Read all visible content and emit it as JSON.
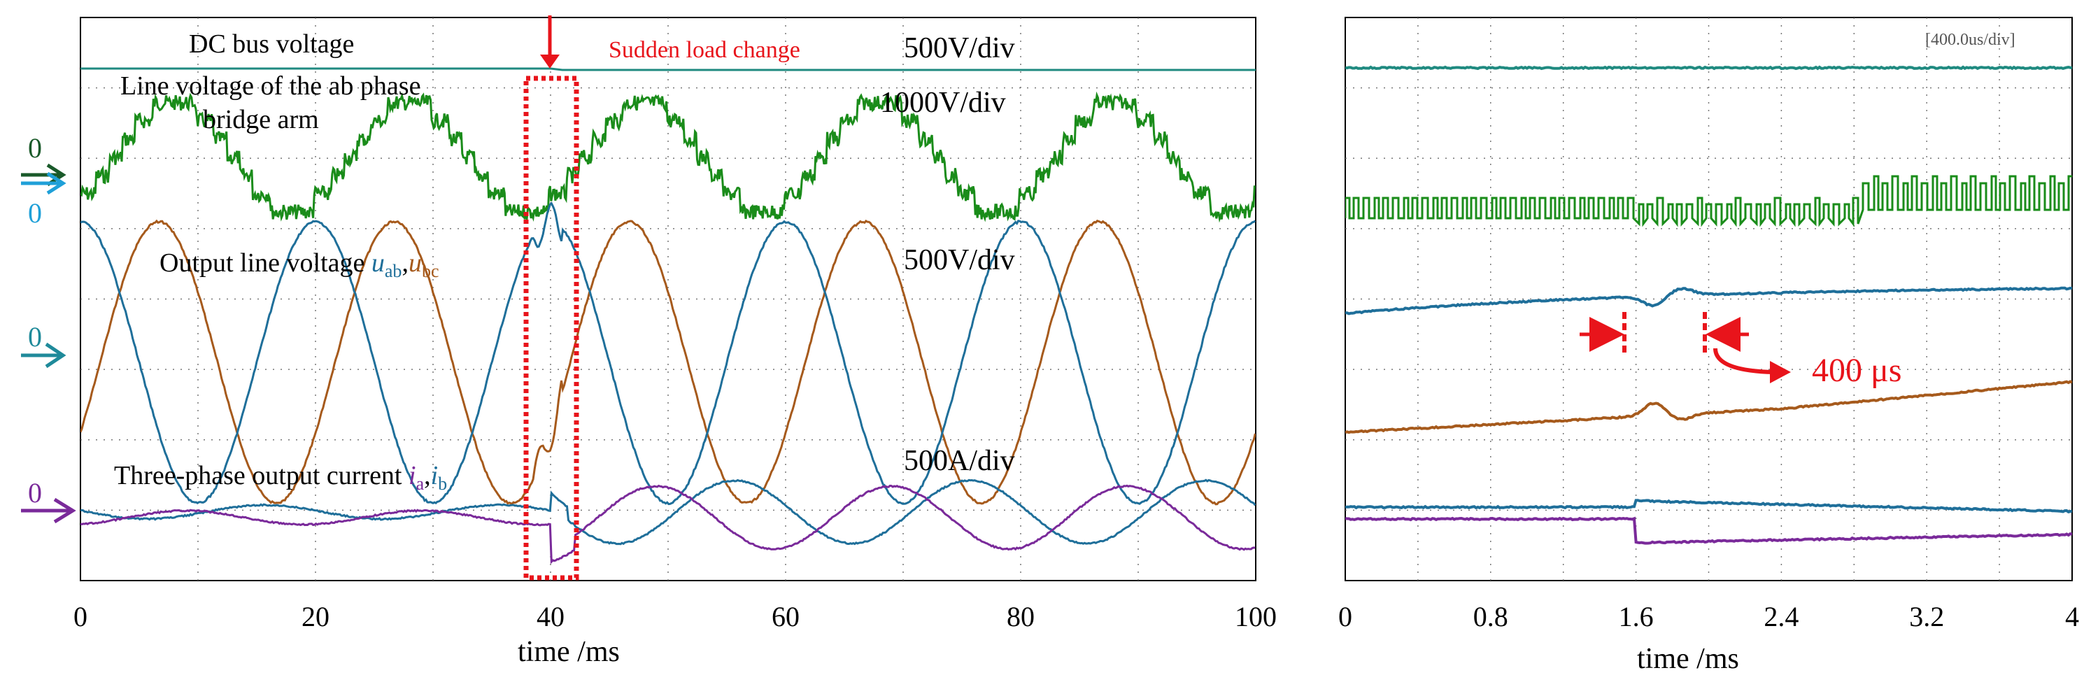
{
  "chart_data": [
    {
      "id": "left-panel",
      "type": "line",
      "xlabel": "time  /ms",
      "xlim": [
        0,
        100
      ],
      "x_ticks": [
        "0",
        "20",
        "40",
        "60",
        "80",
        "100"
      ],
      "grid": true,
      "grid_style": "dotted",
      "event_time_ms": 40,
      "event_label": "Sudden load change",
      "channels": [
        {
          "name": "DC bus voltage",
          "scale": "500V/div",
          "color": "#1f8a80",
          "zero_marker": ""
        },
        {
          "name": "Line voltage of the ab phase",
          "name_line2": "bridge arm",
          "scale": "1000V/div",
          "color": "#1a7a1a",
          "zero_marker": "0"
        },
        {
          "name": "Output line voltage ",
          "sym1": "u",
          "sub1": "ab",
          "sep": ",",
          "sym2": "u",
          "sub2": "bc",
          "scale": "500V/div",
          "zero_marker": "0"
        },
        {
          "name": "Three-phase output current ",
          "sym1": "i",
          "sub1": "a",
          "sep": ",",
          "sym2": "i",
          "sub2": "b",
          "scale": "500A/div",
          "zero_marker": "0"
        }
      ],
      "extra_zero_marker": "0",
      "series": [
        {
          "name": "DC bus voltage",
          "color": "#1f8a80",
          "shape": "flat"
        },
        {
          "name": "ab phase bridge arm line voltage",
          "color": "#1a8c1a",
          "shape": "multilevel-staircase",
          "period_ms": 20
        },
        {
          "name": "u_ab",
          "color": "#1f6f9a",
          "shape": "sine",
          "period_ms": 20,
          "amplitude_div": 2
        },
        {
          "name": "u_bc",
          "color": "#a65a1c",
          "shape": "sine",
          "period_ms": 20,
          "amplitude_div": 2
        },
        {
          "name": "i_a",
          "color": "#7a2a9a",
          "shape": "sine",
          "period_ms": 20,
          "amplitude_before": 0.15,
          "amplitude_after": 0.65
        },
        {
          "name": "i_b",
          "color": "#1f6f9a",
          "shape": "sine",
          "period_ms": 20,
          "amplitude_before": 0.15,
          "amplitude_after": 0.65
        }
      ]
    },
    {
      "id": "right-panel",
      "type": "line",
      "xlabel": "time  /ms",
      "xlim": [
        0,
        4
      ],
      "x_ticks": [
        "0",
        "0.8",
        "1.6",
        "2.4",
        "3.2",
        "4"
      ],
      "grid": true,
      "grid_style": "dotted",
      "timebase": "[400.0us/div]",
      "interval_label": "400 μs",
      "interval_ms": [
        1.6,
        2.0
      ],
      "series": [
        {
          "name": "DC bus voltage",
          "color": "#1f8a80",
          "shape": "flat"
        },
        {
          "name": "bridge arm PWM",
          "color": "#1a8c1a",
          "shape": "pwm-pulses"
        },
        {
          "name": "u_ab",
          "color": "#1f6f9a",
          "shape": "rising-with-dip"
        },
        {
          "name": "u_bc",
          "color": "#a65a1c",
          "shape": "rising-with-dip"
        },
        {
          "name": "i_b",
          "color": "#1f6f9a",
          "shape": "step"
        },
        {
          "name": "i_a",
          "color": "#7a2a9a",
          "shape": "step"
        }
      ]
    }
  ]
}
